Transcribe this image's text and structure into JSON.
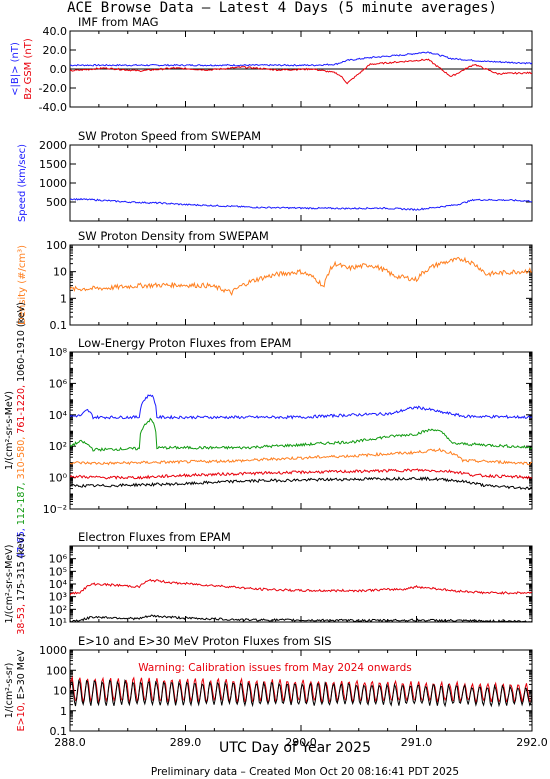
{
  "title": "ACE Browse Data – Latest 4 Days (5 minute averages)",
  "footer": "Preliminary data – Created Mon Oct 20 08:16:41 PDT 2025",
  "colors": {
    "black": "#000000",
    "blue": "#1a1aff",
    "red": "#e8000b",
    "green": "#109a10",
    "orange": "#ff7f1f"
  },
  "chart_data": [
    {
      "type": "line",
      "title": "IMF from MAG",
      "ylim": [
        -40,
        40
      ],
      "yticks": [
        40,
        20,
        0,
        -20,
        -40
      ],
      "ytick_labels": [
        "40.0",
        "20.0",
        "0.0",
        "-20.0",
        "-40.0"
      ],
      "ylabel_lines": [
        {
          "text": "<|B|> (nT)",
          "color": "#1a1aff"
        },
        {
          "text": "Bz GSM (nT)",
          "color": "#e8000b"
        }
      ],
      "zero_line": true,
      "series": [
        {
          "name": "<|B|>",
          "color": "#1a1aff",
          "x": [
            288.0,
            288.3,
            288.6,
            288.9,
            289.2,
            289.5,
            289.8,
            290.1,
            290.3,
            290.4,
            290.6,
            290.9,
            291.1,
            291.3,
            291.6,
            292.0
          ],
          "y": [
            4,
            4,
            4,
            4,
            4,
            4,
            4,
            4,
            5,
            9,
            12,
            15,
            18,
            11,
            8,
            6
          ]
        },
        {
          "name": "Bz GSM",
          "color": "#e8000b",
          "x": [
            288.0,
            288.3,
            288.6,
            288.9,
            289.2,
            289.5,
            289.8,
            290.1,
            290.3,
            290.35,
            290.4,
            290.6,
            290.9,
            291.1,
            291.3,
            291.5,
            291.7,
            292.0
          ],
          "y": [
            -2,
            1,
            -2,
            1,
            -1,
            2,
            -1,
            0,
            -4,
            -8,
            -15,
            5,
            8,
            10,
            -8,
            5,
            -5,
            -4
          ]
        }
      ]
    },
    {
      "type": "line",
      "title": "SW Proton Speed from SWEPAM",
      "ylim": [
        0,
        2000
      ],
      "yticks": [
        2000,
        1500,
        1000,
        500
      ],
      "ytick_labels": [
        "2000",
        "1500",
        "1000",
        "500"
      ],
      "ylabel_lines": [
        {
          "text": "Speed (km/sec)",
          "color": "#1a1aff"
        }
      ],
      "series": [
        {
          "name": "Speed",
          "color": "#1a1aff",
          "x": [
            288.0,
            288.2,
            288.5,
            288.8,
            289.0,
            289.3,
            289.6,
            290.0,
            290.4,
            290.7,
            291.0,
            291.2,
            291.35,
            291.5,
            291.8,
            292.0
          ],
          "y": [
            580,
            560,
            500,
            470,
            430,
            400,
            360,
            340,
            330,
            340,
            300,
            370,
            430,
            560,
            550,
            520
          ]
        }
      ]
    },
    {
      "type": "line",
      "title": "SW Proton Density from SWEPAM",
      "log": true,
      "ylim": [
        0.1,
        100
      ],
      "yticks": [
        100,
        10,
        1,
        0.1
      ],
      "ytick_labels": [
        "100",
        "10",
        "1",
        "0.1"
      ],
      "ylabel_lines": [
        {
          "text": "Density (#/cm³)",
          "color": "#ff7f1f"
        }
      ],
      "series": [
        {
          "name": "Density",
          "color": "#ff7f1f",
          "x": [
            288.0,
            288.3,
            288.6,
            288.9,
            289.2,
            289.4,
            289.55,
            289.8,
            290.0,
            290.2,
            290.3,
            290.4,
            290.6,
            290.8,
            291.0,
            291.2,
            291.4,
            291.6,
            292.0
          ],
          "y": [
            2.2,
            2.4,
            3,
            3.2,
            3,
            1.6,
            4,
            8,
            10,
            2.5,
            20,
            13,
            18,
            7,
            5,
            20,
            30,
            8,
            11
          ]
        }
      ]
    },
    {
      "type": "line",
      "title": "Low-Energy Proton Fluxes from EPAM",
      "log": true,
      "ylim": [
        0.01,
        100000000
      ],
      "yticks": [
        100000000,
        1000000,
        10000,
        100,
        1,
        0.01
      ],
      "ytick_labels": [
        "10⁸",
        "10⁶",
        "10⁴",
        "10²",
        "10⁰",
        "10⁻²"
      ],
      "ylabel_lines": [
        {
          "text": "1/(cm²-sr-s-MeV)",
          "color": "#000000"
        },
        {
          "text": "47-65,",
          "color": "#1a1aff"
        },
        {
          "text": "112-187,",
          "color": "#109a10"
        },
        {
          "text": "310-580,",
          "color": "#ff7f1f"
        },
        {
          "text": "761-1220,",
          "color": "#e8000b"
        },
        {
          "text": "1060-1910 (keV)",
          "color": "#000000"
        }
      ],
      "series": [
        {
          "name": "47-65 keV",
          "color": "#1a1aff",
          "x": [
            288.0,
            288.1,
            288.15,
            288.2,
            288.6,
            288.7,
            288.75,
            289.0,
            290.0,
            290.8,
            291.0,
            291.2,
            291.4,
            292.0
          ],
          "y": [
            8000,
            9000,
            20000,
            7000,
            7000,
            200000,
            7000,
            7000,
            7000,
            12000,
            30000,
            15000,
            8000,
            7000
          ]
        },
        {
          "name": "112-187 keV",
          "color": "#109a10",
          "x": [
            288.0,
            288.1,
            288.2,
            288.6,
            288.7,
            288.75,
            289.0,
            289.5,
            290.0,
            290.5,
            291.0,
            291.15,
            291.3,
            292.0
          ],
          "y": [
            100,
            200,
            60,
            70,
            5000,
            80,
            80,
            80,
            120,
            200,
            600,
            1200,
            150,
            80
          ]
        },
        {
          "name": "310-580 keV",
          "color": "#ff7f1f",
          "x": [
            288.0,
            288.3,
            288.6,
            289.0,
            289.5,
            290.0,
            290.5,
            291.0,
            291.2,
            291.4,
            292.0
          ],
          "y": [
            9,
            8,
            9,
            10,
            12,
            18,
            25,
            40,
            60,
            12,
            8
          ]
        },
        {
          "name": "761-1220 keV",
          "color": "#e8000b",
          "x": [
            288.0,
            288.3,
            288.6,
            289.0,
            289.5,
            290.0,
            290.5,
            291.0,
            291.3,
            291.5,
            292.0
          ],
          "y": [
            1.2,
            1,
            1,
            1.4,
            1.8,
            2.2,
            2.5,
            3,
            2.5,
            1.4,
            1
          ]
        },
        {
          "name": "1060-1910 keV",
          "color": "#000000",
          "x": [
            288.0,
            288.3,
            288.6,
            289.0,
            289.5,
            290.0,
            290.5,
            291.0,
            291.3,
            291.6,
            292.0
          ],
          "y": [
            0.3,
            0.3,
            0.35,
            0.4,
            0.6,
            0.7,
            0.8,
            0.9,
            0.7,
            0.3,
            0.2
          ]
        }
      ]
    },
    {
      "type": "line",
      "title": "Electron Fluxes from EPAM",
      "log": true,
      "ylim": [
        10,
        10000000
      ],
      "yticks": [
        1000000,
        100000,
        10000,
        1000,
        100,
        10
      ],
      "ytick_labels": [
        "10⁶",
        "10⁵",
        "10⁴",
        "10³",
        "10²",
        "10¹"
      ],
      "ylabel_lines": [
        {
          "text": "1/(cm²-sr-s-MeV)",
          "color": "#000000"
        },
        {
          "text": "38-53,",
          "color": "#e8000b"
        },
        {
          "text": "175-315 (keV)",
          "color": "#000000"
        }
      ],
      "series": [
        {
          "name": "38-53 keV",
          "color": "#e8000b",
          "x": [
            288.0,
            288.1,
            288.2,
            288.6,
            288.7,
            288.9,
            289.2,
            289.6,
            290.0,
            290.5,
            290.9,
            291.0,
            291.3,
            291.6,
            292.0
          ],
          "y": [
            1500,
            2500,
            10000,
            6000,
            20000,
            12000,
            8000,
            4000,
            3000,
            3000,
            4000,
            6000,
            3000,
            2000,
            2000
          ]
        },
        {
          "name": "175-315 keV",
          "color": "#000000",
          "x": [
            288.0,
            288.1,
            288.2,
            288.6,
            288.7,
            289.0,
            289.5,
            290.0,
            290.5,
            291.0,
            291.5,
            292.0
          ],
          "y": [
            12,
            14,
            25,
            18,
            30,
            20,
            15,
            14,
            13,
            14,
            12,
            11
          ]
        }
      ]
    },
    {
      "type": "line",
      "title": "E>10 and E>30 MeV Proton Fluxes from SIS",
      "log": true,
      "ylim": [
        0.1,
        1000
      ],
      "yticks": [
        1000,
        100,
        10,
        1,
        0.1
      ],
      "ytick_labels": [
        "1000",
        "100",
        "10",
        "1",
        "0.1"
      ],
      "ylabel_lines": [
        {
          "text": "1/(cm²-s-sr)",
          "color": "#000000"
        },
        {
          "text": "E>10,",
          "color": "#e8000b"
        },
        {
          "text": "E>30 MeV",
          "color": "#000000"
        }
      ],
      "annotation": {
        "text": "Warning: Calibration issues from May 2024 onwards",
        "color": "#e8000b"
      },
      "oscillating": true,
      "series": [
        {
          "name": "E>10 MeV",
          "color": "#e8000b",
          "x": [
            288.0,
            292.0
          ],
          "ymin": [
            3,
            3
          ],
          "ymax": [
            40,
            20
          ]
        },
        {
          "name": "E>30 MeV",
          "color": "#000000",
          "x": [
            288.0,
            292.0
          ],
          "ymin": [
            2,
            2
          ],
          "ymax": [
            30,
            15
          ]
        }
      ]
    }
  ],
  "xaxis": {
    "range": [
      288,
      292
    ],
    "tick_values": [
      288.0,
      289.0,
      290.0,
      291.0,
      292.0
    ],
    "tick_labels": [
      "288.0",
      "289.0",
      "290.0",
      "291.0",
      "292.0"
    ],
    "label": "UTC Day of Year 2025"
  }
}
